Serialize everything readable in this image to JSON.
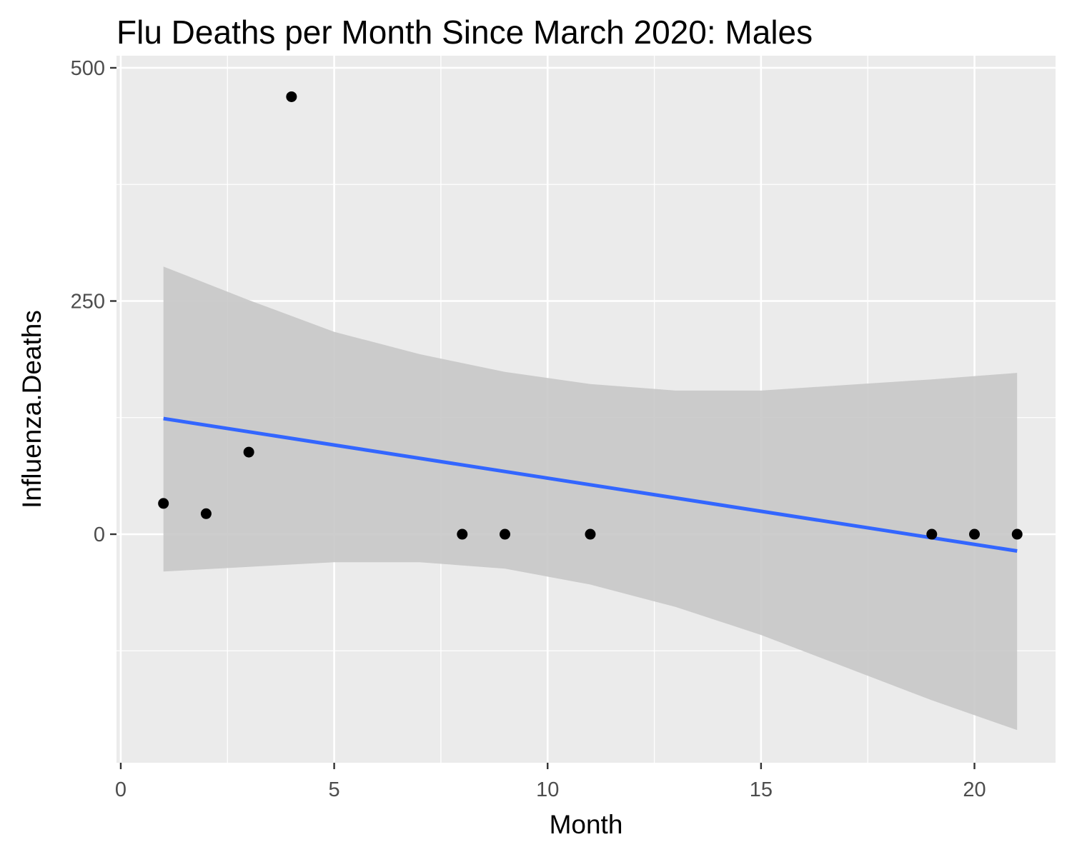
{
  "chart_data": {
    "type": "scatter",
    "title": "Flu Deaths per Month Since March 2020: Males",
    "xlabel": "Month",
    "ylabel": "Influenza.Deaths",
    "xlim": [
      -0.1,
      21.9
    ],
    "ylim": [
      -245,
      513
    ],
    "x_ticks": [
      0,
      5,
      10,
      15,
      20
    ],
    "x_tick_labels": [
      "0",
      "5",
      "10",
      "15",
      "20"
    ],
    "y_ticks": [
      0,
      250,
      500
    ],
    "y_tick_labels": [
      "0",
      "250",
      "500"
    ],
    "minor_x": [
      2.5,
      7.5,
      12.5,
      17.5
    ],
    "minor_y": [
      -125,
      125,
      375
    ],
    "grid": true,
    "points": [
      {
        "x": 1,
        "y": 33
      },
      {
        "x": 2,
        "y": 22
      },
      {
        "x": 3,
        "y": 88
      },
      {
        "x": 4,
        "y": 469
      },
      {
        "x": 8,
        "y": 0
      },
      {
        "x": 9,
        "y": 0
      },
      {
        "x": 11,
        "y": 0
      },
      {
        "x": 19,
        "y": 0
      },
      {
        "x": 20,
        "y": 0
      },
      {
        "x": 21,
        "y": 0
      }
    ],
    "trend_line": {
      "x": [
        1,
        21
      ],
      "y": [
        124,
        -18
      ]
    },
    "confidence_band": {
      "x": [
        1,
        3,
        5,
        7,
        9,
        11,
        13,
        15,
        17,
        19,
        21
      ],
      "upper": [
        287,
        251,
        217,
        193,
        174,
        161,
        154,
        154,
        160,
        166,
        173
      ],
      "lower": [
        -40,
        -35,
        -30,
        -30,
        -37,
        -54,
        -78,
        -108,
        -143,
        -178,
        -210
      ]
    },
    "colors": {
      "panel": "#ebebeb",
      "grid": "#ffffff",
      "point": "#000000",
      "line": "#3366ff",
      "band": "#c8c8c8"
    }
  }
}
